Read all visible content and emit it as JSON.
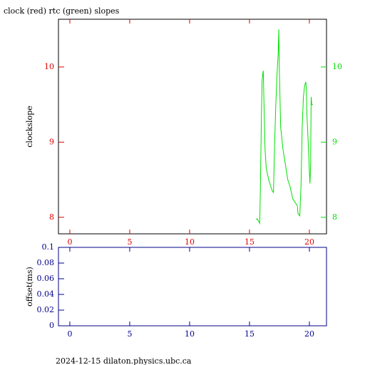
{
  "chart_data": [
    {
      "type": "line",
      "title": "clock (red) rtc (green) slopes",
      "ylabel": "clockslope",
      "xlim": [
        -0.95,
        21.43
      ],
      "xticks": [
        0,
        5,
        10,
        15,
        20
      ],
      "ylim": [
        7.78,
        10.635
      ],
      "yticks": [
        8,
        9,
        10
      ],
      "y2lim": [
        7.78,
        10.635
      ],
      "y2ticks": [
        8,
        9,
        10
      ],
      "x_color": "#e00000",
      "y_color": "#e00000",
      "y2_color": "#00e000",
      "frame_color": "#000000",
      "x": [
        15.55,
        15.65,
        15.75,
        15.85,
        15.9,
        16.0,
        16.05,
        16.1,
        16.15,
        16.2,
        16.3,
        16.4,
        16.6,
        16.8,
        16.9,
        17.0,
        17.1,
        17.2,
        17.3,
        17.4,
        17.45,
        17.5,
        17.6,
        17.8,
        18.0,
        18.2,
        18.4,
        18.6,
        18.8,
        19.0,
        19.05,
        19.2,
        19.3,
        19.4,
        19.5,
        19.6,
        19.7,
        19.75,
        19.8,
        19.9,
        20.0,
        20.05,
        20.1,
        20.15,
        20.2,
        20.3
      ],
      "series": [
        {
          "name": "rtc",
          "color": "#00e000",
          "axis": "y2",
          "values": [
            7.97,
            7.98,
            7.95,
            7.92,
            8.3,
            9.4,
            9.8,
            9.9,
            9.95,
            9.6,
            8.9,
            8.65,
            8.5,
            8.4,
            8.35,
            8.33,
            9.0,
            9.5,
            9.9,
            10.2,
            10.5,
            9.9,
            9.2,
            8.9,
            8.7,
            8.5,
            8.4,
            8.25,
            8.2,
            8.15,
            8.05,
            8.02,
            8.4,
            9.2,
            9.6,
            9.75,
            9.8,
            9.7,
            9.35,
            9.0,
            8.6,
            8.45,
            8.7,
            9.6,
            9.5,
            9.5
          ]
        }
      ]
    },
    {
      "type": "line",
      "ylabel": "offset(ms)",
      "xlim": [
        -0.95,
        21.43
      ],
      "xticks": [
        0,
        5,
        10,
        15,
        20
      ],
      "ylim": [
        0,
        0.1
      ],
      "yticks": [
        0,
        0.02,
        0.04,
        0.06,
        0.08,
        0.1
      ],
      "x_color": "#00008b",
      "y_color": "#00008b",
      "frame_color": "#00008b",
      "x": [],
      "series": []
    }
  ],
  "footer": "2024-12-15 dilaton.physics.ubc.ca"
}
